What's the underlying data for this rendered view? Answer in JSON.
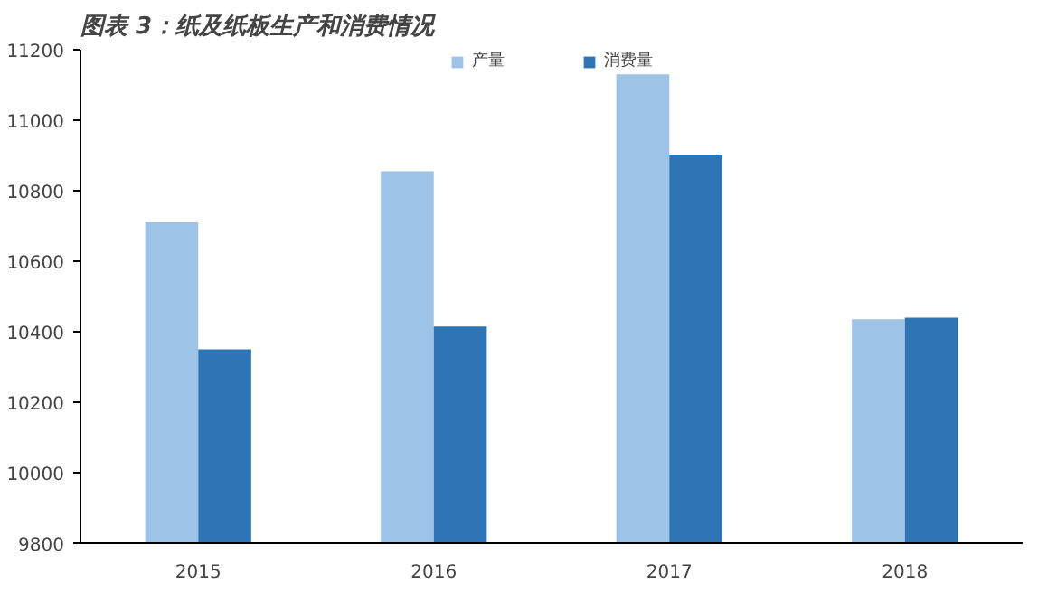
{
  "chart_data": {
    "type": "bar",
    "title": "图表 3：纸及纸板生产和消费情况",
    "categories": [
      "2015",
      "2016",
      "2017",
      "2018"
    ],
    "series": [
      {
        "name": "产量",
        "color": "#9dc3e6",
        "values": [
          10710,
          10855,
          11130,
          10435
        ]
      },
      {
        "name": "消费量",
        "color": "#2e75b6",
        "values": [
          10350,
          10415,
          10900,
          10440
        ]
      }
    ],
    "ylim": [
      9800,
      11200
    ],
    "yticks": [
      9800,
      10000,
      10200,
      10400,
      10600,
      10800,
      11000,
      11200
    ],
    "legend": "top"
  }
}
